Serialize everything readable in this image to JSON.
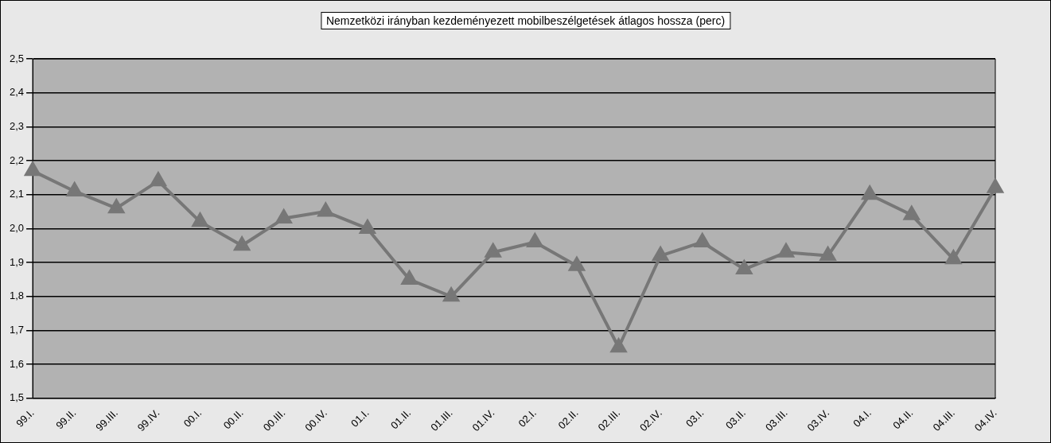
{
  "chart_data": {
    "type": "line",
    "title": "Nemzetközi irányban kezdeményezett mobilbeszélgetések átlagos hossza (perc)",
    "categories": [
      "99.I.",
      "99.II.",
      "99.III.",
      "99.IV.",
      "00.I.",
      "00.II.",
      "00.III.",
      "00.IV.",
      "01.I.",
      "01.II.",
      "01.III.",
      "01.IV.",
      "02.I.",
      "02.II.",
      "02.III.",
      "02.IV.",
      "03.I.",
      "03.II.",
      "03.III.",
      "03.IV.",
      "04.I.",
      "04.II.",
      "04.III.",
      "04.IV."
    ],
    "series": [
      {
        "color": "#777777",
        "values": [
          2.17,
          2.11,
          2.06,
          2.14,
          2.02,
          1.95,
          2.03,
          2.05,
          2.0,
          1.85,
          1.8,
          1.93,
          1.96,
          1.89,
          1.65,
          1.92,
          1.96,
          1.88,
          1.93,
          1.92,
          2.1,
          2.04,
          1.91,
          2.12
        ]
      }
    ],
    "ylim": [
      1.5,
      2.5
    ],
    "yticks": [
      {
        "value": 1.5,
        "label": "1,5"
      },
      {
        "value": 1.6,
        "label": "1,6"
      },
      {
        "value": 1.7,
        "label": "1,7"
      },
      {
        "value": 1.8,
        "label": "1,8"
      },
      {
        "value": 1.9,
        "label": "1,9"
      },
      {
        "value": 2.0,
        "label": "2,0"
      },
      {
        "value": 2.1,
        "label": "2,1"
      },
      {
        "value": 2.2,
        "label": "2,2"
      },
      {
        "value": 2.3,
        "label": "2,3"
      },
      {
        "value": 2.4,
        "label": "2,4"
      },
      {
        "value": 2.5,
        "label": "2,5"
      }
    ],
    "grid": "y",
    "legend": false,
    "marker": "triangle",
    "line_style": "solid"
  }
}
